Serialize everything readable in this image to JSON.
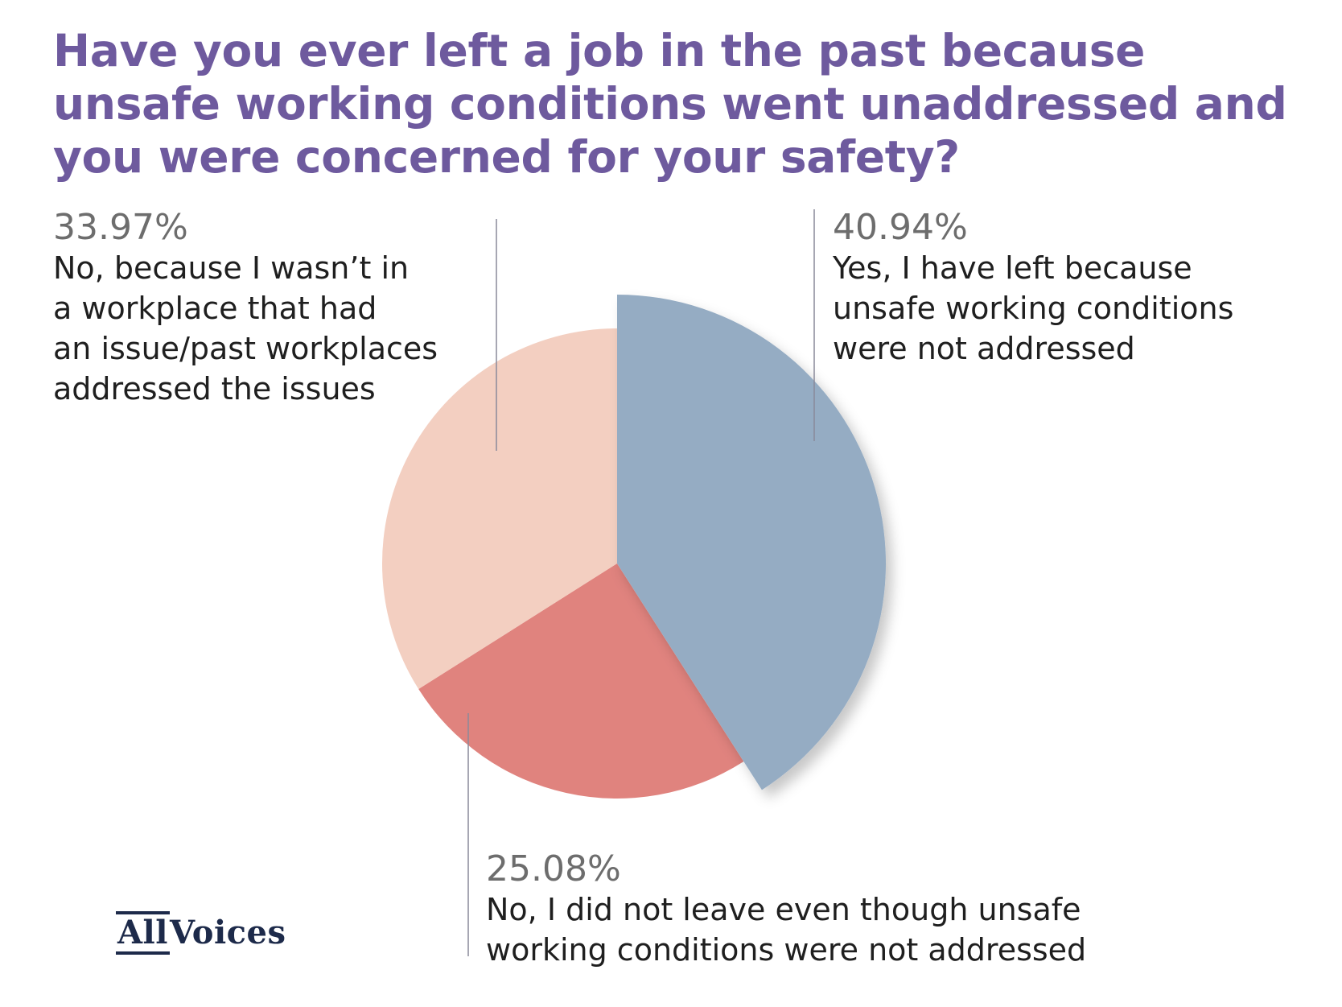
{
  "chart_data": {
    "type": "pie",
    "title": "Have you ever left a job in the past because unsafe working conditions went unaddressed and you were concerned for your safety?",
    "slices": [
      {
        "label": "Yes, I have left because unsafe working conditions were not addressed",
        "value": 40.94,
        "value_label": "40.94%",
        "color": "#95acc3",
        "exploded": true
      },
      {
        "label": "No, I did not leave even though unsafe working conditions were not addressed",
        "value": 25.08,
        "value_label": "25.08%",
        "color": "#e0837e",
        "exploded": false
      },
      {
        "label": "No, because I wasn’t in a workplace that had an issue/past workplaces addressed the issues",
        "value": 33.97,
        "value_label": "33.97%",
        "color": "#f3cfc1",
        "exploded": false
      }
    ],
    "start_angle": "12 o'clock",
    "direction": "clockwise"
  },
  "labels": {
    "yes": {
      "percent": "40.94%",
      "lines": [
        "Yes, I have left because",
        "unsafe working conditions",
        "were not addressed"
      ]
    },
    "no_did_not_leave": {
      "percent": "25.08%",
      "lines": [
        "No, I did not leave even though unsafe",
        "working conditions were not addressed"
      ]
    },
    "no_workplace": {
      "percent": "33.97%",
      "lines": [
        "No, because I wasn’t in",
        "a workplace that had",
        "an issue/past workplaces",
        "addressed the issues"
      ]
    }
  },
  "logo": {
    "part1": "All",
    "part2": "Voices"
  },
  "colors": {
    "title": "#6e5a9e",
    "leader_line": "#8a8a9a"
  }
}
